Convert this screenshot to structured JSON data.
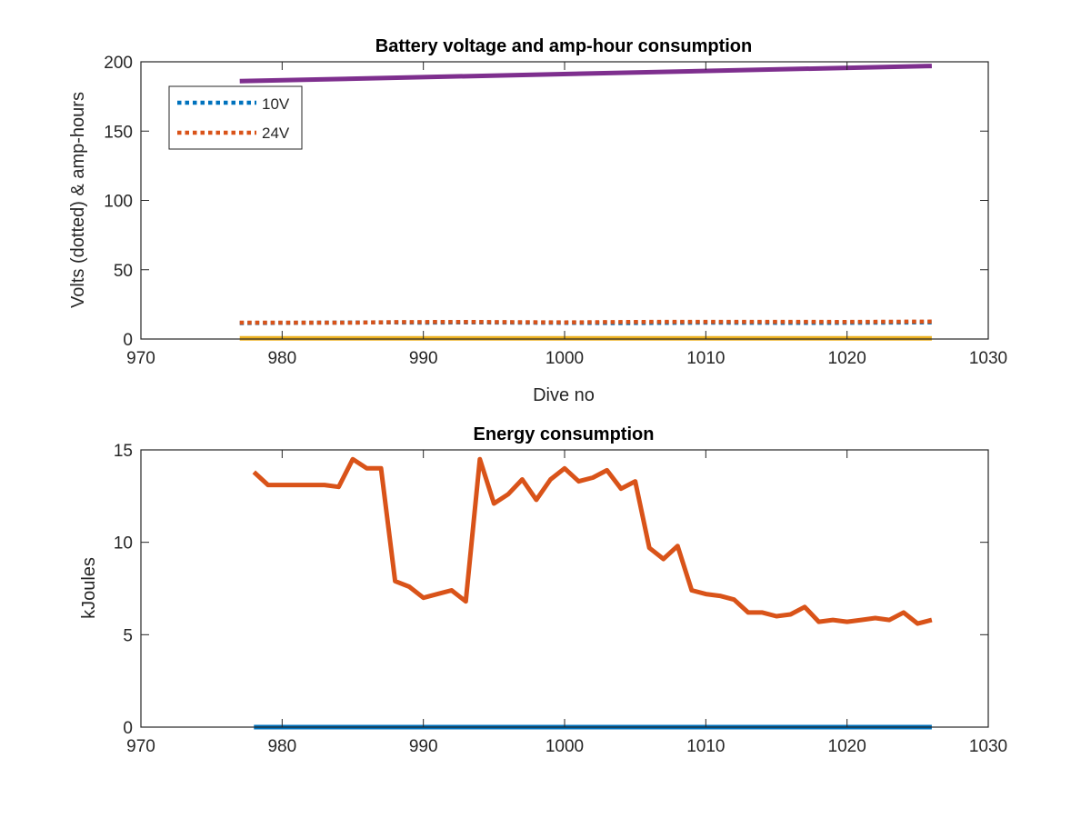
{
  "chart_data": [
    {
      "type": "line",
      "title": "Battery voltage and amp-hour consumption",
      "xlabel": "Dive no",
      "ylabel": "Volts (dotted) & amp-hours",
      "xlim": [
        970,
        1030
      ],
      "ylim": [
        0,
        200
      ],
      "xticks": [
        970,
        980,
        990,
        1000,
        1010,
        1020,
        1030
      ],
      "yticks": [
        0,
        50,
        100,
        150,
        200
      ],
      "grid": false,
      "legend_position": "top-left",
      "legend": [
        "10V",
        "24V"
      ],
      "series": [
        {
          "name": "10V",
          "style": "dotted",
          "color": "#0072BD",
          "x": [
            977,
            987,
            990,
            993,
            1004,
            1010,
            1018,
            1026
          ],
          "y": [
            11.5,
            12,
            11.8,
            12,
            11.5,
            11.8,
            11.6,
            12
          ]
        },
        {
          "name": "24V",
          "style": "dotted",
          "color": "#D95319",
          "x": [
            977,
            985,
            988,
            993,
            1000,
            1005,
            1012,
            1020,
            1026
          ],
          "y": [
            11.8,
            11.8,
            12.2,
            12.3,
            12,
            12.3,
            12.4,
            12.3,
            12.6
          ]
        },
        {
          "style": "solid",
          "color": "#EDB120",
          "x": [
            977,
            1026
          ],
          "y": [
            0.5,
            0.5
          ]
        },
        {
          "style": "solid",
          "color": "#7E2F8E",
          "x": [
            977,
            1026
          ],
          "y": [
            186,
            197
          ]
        }
      ]
    },
    {
      "type": "line",
      "title": "Energy consumption",
      "xlabel": "",
      "ylabel": "kJoules",
      "xlim": [
        970,
        1030
      ],
      "ylim": [
        0,
        15
      ],
      "xticks": [
        970,
        980,
        990,
        1000,
        1010,
        1020,
        1030
      ],
      "yticks": [
        0,
        5,
        10,
        15
      ],
      "grid": false,
      "series": [
        {
          "style": "solid",
          "color": "#D95319",
          "x": [
            978,
            979,
            980,
            981,
            982,
            983,
            984,
            985,
            986,
            987,
            988,
            989,
            990,
            991,
            992,
            993,
            994,
            995,
            996,
            997,
            998,
            999,
            1000,
            1001,
            1002,
            1003,
            1004,
            1005,
            1006,
            1007,
            1008,
            1009,
            1010,
            1011,
            1012,
            1013,
            1014,
            1015,
            1016,
            1017,
            1018,
            1019,
            1020,
            1021,
            1022,
            1023,
            1024,
            1025,
            1026
          ],
          "y": [
            13.8,
            13.1,
            13.1,
            13.1,
            13.1,
            13.1,
            13.0,
            14.5,
            14.0,
            14.0,
            7.9,
            7.6,
            7.0,
            7.2,
            7.4,
            6.8,
            14.5,
            12.1,
            12.6,
            13.4,
            12.3,
            13.4,
            14.0,
            13.3,
            13.5,
            13.9,
            12.9,
            13.3,
            9.7,
            9.1,
            9.8,
            7.4,
            7.2,
            7.1,
            6.9,
            6.2,
            6.2,
            6.0,
            6.1,
            6.5,
            5.7,
            5.8,
            5.7,
            5.8,
            5.9,
            5.8,
            6.2,
            5.6,
            5.8
          ]
        },
        {
          "style": "solid",
          "color": "#0072BD",
          "x": [
            978,
            1026
          ],
          "y": [
            0,
            0
          ]
        }
      ]
    }
  ]
}
